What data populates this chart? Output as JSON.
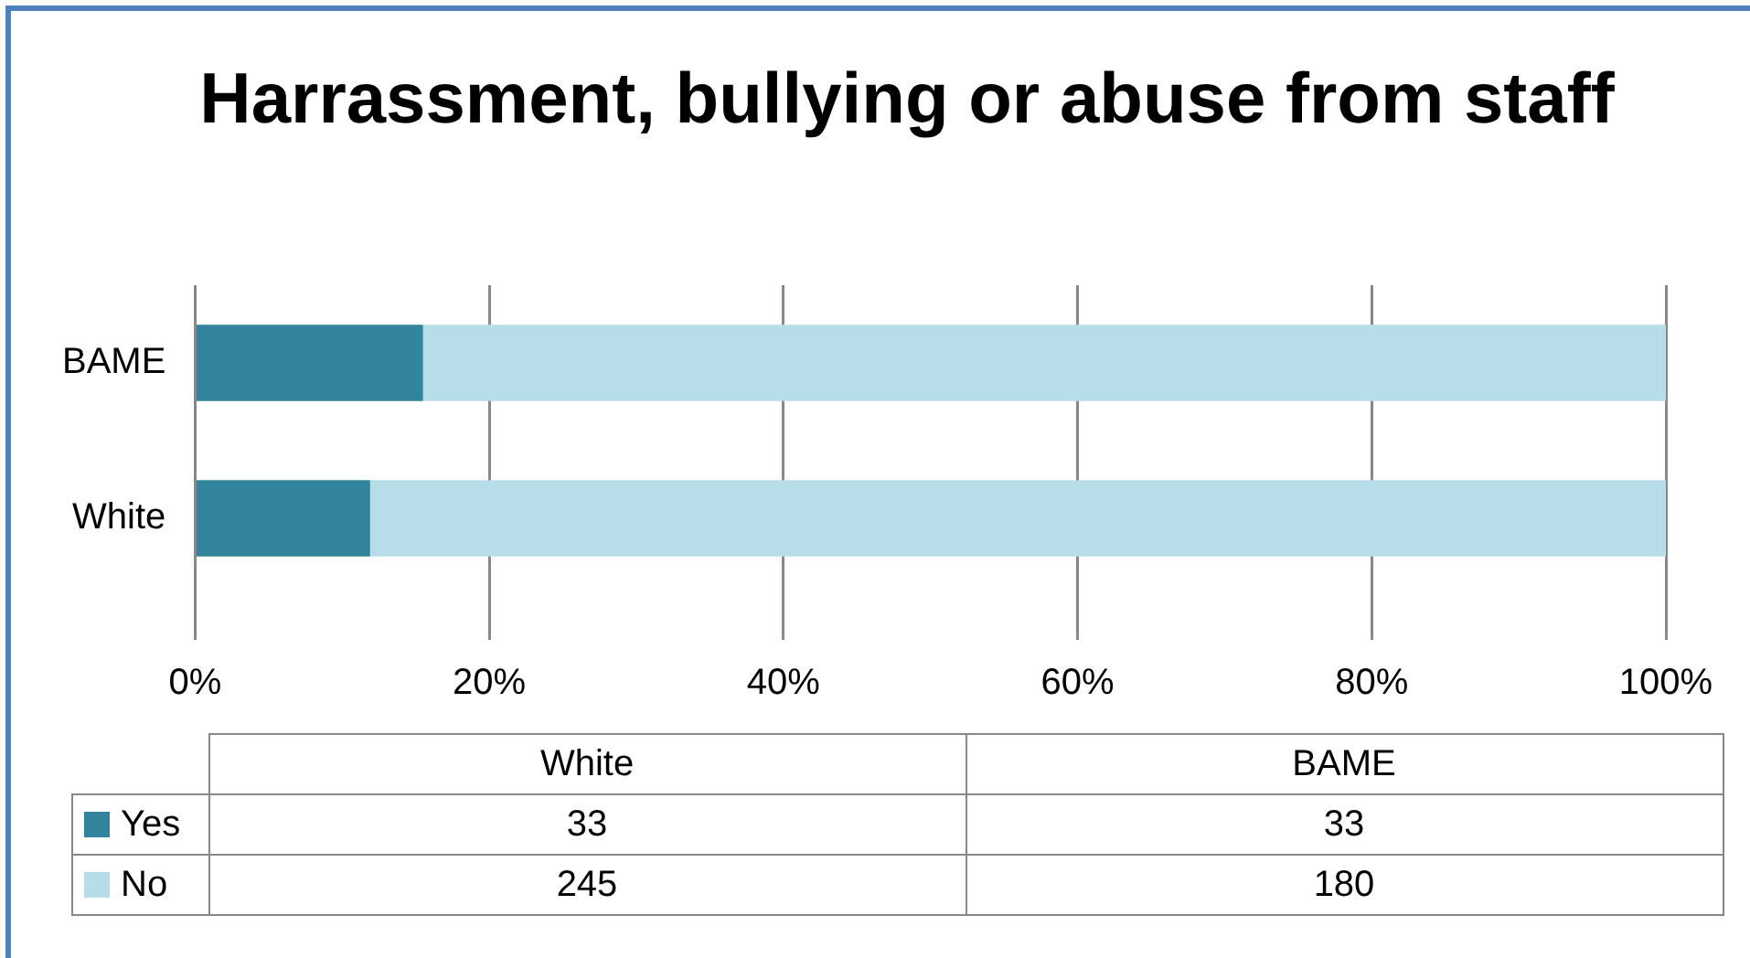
{
  "chart_data": [
    {
      "type": "bar",
      "orientation": "horizontal",
      "stacked": true,
      "title": "Harrassment, bullying or abuse from staff",
      "categories": [
        "BAME",
        "White"
      ],
      "series": [
        {
          "color": "#31849b",
          "values": [
            15.5,
            11.9
          ]
        },
        {
          "color": "#b7dde8",
          "values": [
            84.5,
            88.1
          ]
        }
      ],
      "xlim": [
        0,
        100
      ],
      "xticks": [
        {
          "value": 0,
          "label": "0%"
        },
        {
          "value": 20,
          "label": "20%"
        },
        {
          "value": 40,
          "label": "40%"
        },
        {
          "value": 60,
          "label": "60%"
        },
        {
          "value": 80,
          "label": "80%"
        },
        {
          "value": 100,
          "label": "100%"
        }
      ],
      "grid": "x"
    },
    {
      "type": "other",
      "categories": [
        "White",
        "BAME"
      ],
      "series": [
        {
          "name": "Yes",
          "color": "#31849b",
          "values": [
            33,
            33
          ]
        },
        {
          "name": "No",
          "color": "#b7dde8",
          "values": [
            245,
            180
          ]
        }
      ],
      "data_labels": true,
      "legend": "left"
    }
  ]
}
